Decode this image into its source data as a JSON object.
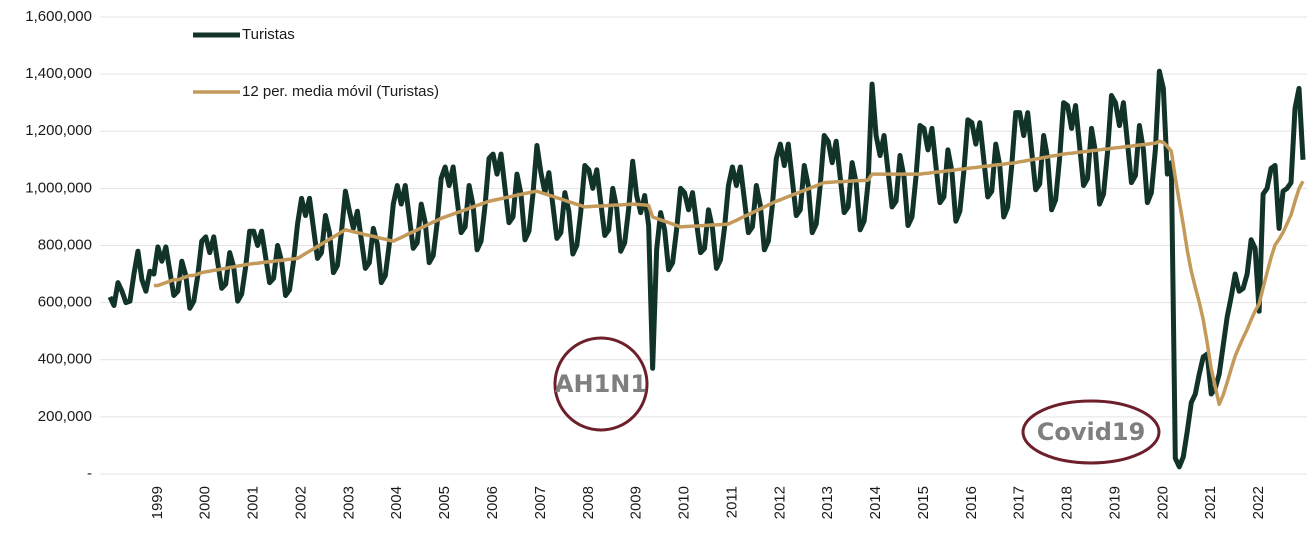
{
  "chart_data": {
    "type": "line",
    "categories": [
      null,
      null,
      null,
      null,
      null,
      null,
      null,
      null,
      null,
      null,
      null,
      null,
      "1999",
      null,
      null,
      null,
      null,
      null,
      null,
      null,
      null,
      null,
      null,
      null,
      "2000",
      null,
      null,
      null,
      null,
      null,
      null,
      null,
      null,
      null,
      null,
      null,
      "2001",
      null,
      null,
      null,
      null,
      null,
      null,
      null,
      null,
      null,
      null,
      null,
      "2002",
      null,
      null,
      null,
      null,
      null,
      null,
      null,
      null,
      null,
      null,
      null,
      "2003",
      null,
      null,
      null,
      null,
      null,
      null,
      null,
      null,
      null,
      null,
      null,
      "2004",
      null,
      null,
      null,
      null,
      null,
      null,
      null,
      null,
      null,
      null,
      null,
      "2005",
      null,
      null,
      null,
      null,
      null,
      null,
      null,
      null,
      null,
      null,
      null,
      "2006",
      null,
      null,
      null,
      null,
      null,
      null,
      null,
      null,
      null,
      null,
      null,
      "2007",
      null,
      null,
      null,
      null,
      null,
      null,
      null,
      null,
      null,
      null,
      null,
      "2008",
      null,
      null,
      null,
      null,
      null,
      null,
      null,
      null,
      null,
      null,
      null,
      "2009",
      null,
      null,
      null,
      null,
      null,
      null,
      null,
      null,
      null,
      null,
      null,
      "2010",
      null,
      null,
      null,
      null,
      null,
      null,
      null,
      null,
      null,
      null,
      null,
      "2011",
      null,
      null,
      null,
      null,
      null,
      null,
      null,
      null,
      null,
      null,
      null,
      "2012",
      null,
      null,
      null,
      null,
      null,
      null,
      null,
      null,
      null,
      null,
      null,
      "2013",
      null,
      null,
      null,
      null,
      null,
      null,
      null,
      null,
      null,
      null,
      null,
      "2014",
      null,
      null,
      null,
      null,
      null,
      null,
      null,
      null,
      null,
      null,
      null,
      "2015",
      null,
      null,
      null,
      null,
      null,
      null,
      null,
      null,
      null,
      null,
      null,
      "2016",
      null,
      null,
      null,
      null,
      null,
      null,
      null,
      null,
      null,
      null,
      null,
      "2017",
      null,
      null,
      null,
      null,
      null,
      null,
      null,
      null,
      null,
      null,
      null,
      "2018",
      null,
      null,
      null,
      null,
      null,
      null,
      null,
      null,
      null,
      null,
      null,
      "2019",
      null,
      null,
      null,
      null,
      null,
      null,
      null,
      null,
      null,
      null,
      null,
      "2020",
      null,
      null,
      null,
      null,
      null,
      null,
      null,
      null,
      null,
      null,
      null,
      "2021",
      null,
      null,
      null,
      null,
      null,
      null,
      null,
      null,
      null,
      null,
      null,
      "2022",
      null,
      null,
      null,
      null,
      null,
      null,
      null,
      null,
      null,
      null,
      null
    ],
    "series": [
      {
        "name": "Turistas",
        "color": "#12332a",
        "values": [
          620000,
          590000,
          670000,
          640000,
          600000,
          605000,
          700000,
          780000,
          680000,
          640000,
          710000,
          700000,
          795000,
          745000,
          795000,
          710000,
          625000,
          640000,
          745000,
          695000,
          580000,
          605000,
          695000,
          815000,
          830000,
          775000,
          830000,
          740000,
          650000,
          665000,
          775000,
          725000,
          605000,
          630000,
          725000,
          850000,
          850000,
          800000,
          850000,
          760000,
          670000,
          685000,
          800000,
          745000,
          625000,
          645000,
          745000,
          875000,
          965000,
          905000,
          965000,
          860000,
          755000,
          775000,
          905000,
          845000,
          705000,
          730000,
          845000,
          990000,
          920000,
          860000,
          920000,
          820000,
          720000,
          740000,
          860000,
          805000,
          670000,
          695000,
          805000,
          945000,
          1010000,
          945000,
          1010000,
          900000,
          790000,
          810000,
          945000,
          880000,
          740000,
          765000,
          880000,
          1035000,
          1075000,
          1010000,
          1075000,
          960000,
          845000,
          865000,
          1010000,
          940000,
          785000,
          815000,
          940000,
          1105000,
          1120000,
          1050000,
          1120000,
          1000000,
          880000,
          900000,
          1050000,
          980000,
          820000,
          850000,
          980000,
          1150000,
          1055000,
          985000,
          1055000,
          940000,
          825000,
          845000,
          985000,
          920000,
          770000,
          800000,
          920000,
          1080000,
          1065000,
          1000000,
          1065000,
          950000,
          835000,
          855000,
          1000000,
          930000,
          780000,
          810000,
          930000,
          1095000,
          975000,
          915000,
          975000,
          870000,
          370000,
          785000,
          915000,
          855000,
          715000,
          740000,
          855000,
          1000000,
          985000,
          925000,
          985000,
          880000,
          775000,
          790000,
          925000,
          860000,
          720000,
          750000,
          860000,
          1010000,
          1075000,
          1010000,
          1075000,
          960000,
          845000,
          865000,
          1010000,
          940000,
          785000,
          815000,
          940000,
          1105000,
          1155000,
          1080000,
          1155000,
          1030000,
          905000,
          925000,
          1080000,
          1010000,
          845000,
          875000,
          1010000,
          1185000,
          1165000,
          1090000,
          1165000,
          1040000,
          915000,
          935000,
          1090000,
          1020000,
          855000,
          885000,
          1020000,
          1365000,
          1185000,
          1115000,
          1185000,
          1060000,
          935000,
          955000,
          1115000,
          1040000,
          870000,
          900000,
          1040000,
          1220000,
          1210000,
          1135000,
          1210000,
          1080000,
          950000,
          970000,
          1135000,
          1060000,
          885000,
          920000,
          1060000,
          1240000,
          1230000,
          1155000,
          1230000,
          1100000,
          970000,
          990000,
          1155000,
          1080000,
          900000,
          935000,
          1080000,
          1265000,
          1265000,
          1185000,
          1265000,
          1130000,
          995000,
          1015000,
          1185000,
          1105000,
          925000,
          960000,
          1105000,
          1300000,
          1290000,
          1210000,
          1290000,
          1150000,
          1010000,
          1035000,
          1210000,
          1125000,
          945000,
          980000,
          1125000,
          1325000,
          1300000,
          1220000,
          1300000,
          1160000,
          1020000,
          1045000,
          1220000,
          1135000,
          950000,
          985000,
          1135000,
          1410000,
          1350000,
          1050000,
          1090000,
          55000,
          25000,
          60000,
          150000,
          250000,
          280000,
          350000,
          410000,
          420000,
          280000,
          300000,
          350000,
          450000,
          550000,
          620000,
          700000,
          640000,
          650000,
          700000,
          820000,
          790000,
          570000,
          980000,
          1000000,
          1070000,
          1080000,
          860000,
          990000,
          1000000,
          1020000,
          1280000,
          1350000,
          1100000
        ]
      },
      {
        "name": "12 per. media móvil (Turistas)",
        "color": "#c49a5a",
        "values": [
          null,
          null,
          null,
          null,
          null,
          null,
          null,
          null,
          null,
          null,
          null,
          660000,
          660000,
          665000,
          670000,
          675000,
          680000,
          680000,
          685000,
          690000,
          695000,
          695000,
          700000,
          705000,
          708000,
          710000,
          713000,
          715000,
          718000,
          720000,
          723000,
          725000,
          728000,
          730000,
          733000,
          735000,
          737000,
          738000,
          740000,
          742000,
          743000,
          745000,
          747000,
          748000,
          750000,
          752000,
          753000,
          755000,
          763000,
          772000,
          780000,
          788000,
          797000,
          805000,
          813000,
          822000,
          830000,
          838000,
          847000,
          855000,
          852000,
          848000,
          845000,
          842000,
          838000,
          835000,
          832000,
          828000,
          825000,
          822000,
          818000,
          815000,
          822000,
          828000,
          835000,
          842000,
          848000,
          855000,
          862000,
          868000,
          875000,
          882000,
          888000,
          895000,
          900000,
          905000,
          910000,
          915000,
          920000,
          925000,
          930000,
          935000,
          940000,
          945000,
          950000,
          955000,
          958000,
          961000,
          964000,
          967000,
          970000,
          973000,
          976000,
          979000,
          982000,
          985000,
          988000,
          990000,
          985000,
          981000,
          976000,
          972000,
          967000,
          963000,
          958000,
          953000,
          949000,
          944000,
          940000,
          935000,
          936000,
          937000,
          938000,
          938000,
          939000,
          940000,
          941000,
          942000,
          942000,
          943000,
          944000,
          945000,
          944000,
          943000,
          942000,
          940000,
          900000,
          895000,
          890000,
          885000,
          880000,
          875000,
          870000,
          865000,
          866000,
          867000,
          868000,
          868000,
          869000,
          870000,
          871000,
          872000,
          872000,
          873000,
          874000,
          875000,
          882000,
          888000,
          895000,
          902000,
          908000,
          915000,
          922000,
          928000,
          935000,
          942000,
          948000,
          955000,
          960000,
          966000,
          971000,
          977000,
          982000,
          988000,
          993000,
          998000,
          1004000,
          1009000,
          1015000,
          1020000,
          1021000,
          1022000,
          1023000,
          1023000,
          1024000,
          1025000,
          1026000,
          1027000,
          1027000,
          1028000,
          1029000,
          1050000,
          1050000,
          1050000,
          1050000,
          1050000,
          1050000,
          1050000,
          1050000,
          1050000,
          1050000,
          1050000,
          1050000,
          1050000,
          1052000,
          1053000,
          1055000,
          1057000,
          1058000,
          1060000,
          1062000,
          1063000,
          1065000,
          1067000,
          1068000,
          1070000,
          1072000,
          1073000,
          1075000,
          1077000,
          1078000,
          1080000,
          1082000,
          1083000,
          1085000,
          1087000,
          1088000,
          1090000,
          1093000,
          1095000,
          1098000,
          1100000,
          1103000,
          1105000,
          1108000,
          1110000,
          1113000,
          1115000,
          1118000,
          1120000,
          1122000,
          1123000,
          1125000,
          1127000,
          1128000,
          1130000,
          1132000,
          1133000,
          1135000,
          1137000,
          1138000,
          1140000,
          1142000,
          1143000,
          1145000,
          1147000,
          1148000,
          1150000,
          1152000,
          1153000,
          1155000,
          1157000,
          1158000,
          1165000,
          1161000,
          1147000,
          1130000,
          1037000,
          954000,
          872000,
          783000,
          710000,
          654000,
          601000,
          540000,
          458000,
          368000,
          306000,
          244000,
          277000,
          321000,
          368000,
          413000,
          446000,
          477000,
          506000,
          540000,
          571000,
          595000,
          652000,
          706000,
          758000,
          802000,
          822000,
          846000,
          876000,
          907000,
          955000,
          999000,
          1025000
        ]
      }
    ],
    "ylim": [
      0,
      1600000
    ],
    "yticks": [
      {
        "value": 0,
        "label": "-"
      },
      {
        "value": 200000,
        "label": "200,000"
      },
      {
        "value": 400000,
        "label": "400,000"
      },
      {
        "value": 600000,
        "label": "600,000"
      },
      {
        "value": 800000,
        "label": "800,000"
      },
      {
        "value": 1000000,
        "label": "1,000,000"
      },
      {
        "value": 1200000,
        "label": "1,200,000"
      },
      {
        "value": 1400000,
        "label": "1,400,000"
      },
      {
        "value": 1600000,
        "label": "1,600,000"
      }
    ],
    "grid": true,
    "legend": "upper left",
    "annotations": [
      "AH1N1",
      "Covid19"
    ]
  }
}
